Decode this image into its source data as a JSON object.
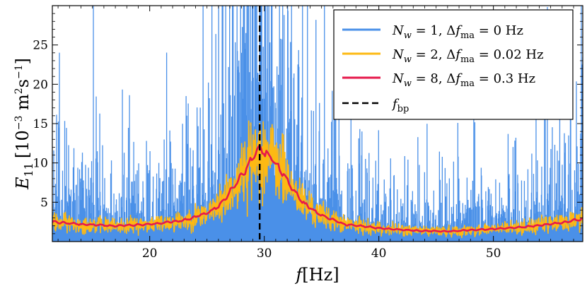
{
  "chart_data": {
    "type": "line",
    "title": "",
    "xlabel": "f [Hz]",
    "ylabel": "E11 [10^-3 m^2 s^-1]",
    "xlim": [
      11.5,
      57.8
    ],
    "ylim": [
      0,
      30
    ],
    "xticks": [
      20,
      30,
      40,
      50
    ],
    "xtick_labels": [
      "20",
      "30",
      "40",
      "50"
    ],
    "yticks": [
      5,
      10,
      15,
      20,
      25
    ],
    "ytick_labels": [
      "5",
      "10",
      "15",
      "20",
      "25"
    ],
    "legend_position": "top-right",
    "series": [
      {
        "name": "N_w = 1, Δf_ma = 0 Hz",
        "color": "#4a90e8",
        "style": "noisy-spectrum",
        "x": [
          11.5,
          14,
          17,
          20,
          23,
          25,
          26,
          27,
          28,
          29,
          29.6,
          30.5,
          31.5,
          32.5,
          33.5,
          35,
          37,
          40,
          43,
          46,
          50,
          53,
          56,
          57.8
        ],
        "values": [
          4.2,
          3.9,
          3.6,
          3.8,
          4.3,
          5.5,
          7.0,
          10.0,
          14.0,
          17.0,
          18.5,
          16.5,
          13.5,
          10.0,
          7.5,
          5.2,
          3.8,
          3.0,
          2.7,
          2.6,
          2.9,
          3.3,
          4.2,
          4.8
        ]
      },
      {
        "name": "N_w = 2, Δf_ma = 0.02 Hz",
        "color": "#fdb913",
        "style": "noisy-spectrum",
        "x": [
          11.5,
          14,
          17,
          20,
          23,
          25,
          26,
          27,
          28,
          29,
          29.6,
          30.5,
          31.5,
          32.5,
          33.5,
          35,
          37,
          40,
          43,
          46,
          50,
          53,
          56,
          57.8
        ],
        "values": [
          2.5,
          2.2,
          2.0,
          2.2,
          2.7,
          3.6,
          4.5,
          6.3,
          8.4,
          10.6,
          11.8,
          10.8,
          9.0,
          6.6,
          4.8,
          3.3,
          2.2,
          1.7,
          1.4,
          1.3,
          1.6,
          1.9,
          2.4,
          2.9
        ]
      },
      {
        "name": "N_w = 8, Δf_ma = 0.3 Hz",
        "color": "#e6194b",
        "style": "smooth",
        "x": [
          11.5,
          14,
          17,
          20,
          23,
          25,
          26,
          27,
          28,
          29,
          29.6,
          30.5,
          31.5,
          32.5,
          33.5,
          35,
          37,
          40,
          43,
          46,
          50,
          53,
          56,
          57.8
        ],
        "values": [
          2.5,
          2.2,
          2.0,
          2.2,
          2.7,
          3.6,
          4.5,
          6.3,
          8.4,
          10.6,
          11.8,
          10.8,
          9.0,
          6.6,
          4.8,
          3.3,
          2.2,
          1.7,
          1.4,
          1.3,
          1.6,
          1.9,
          2.4,
          2.9
        ]
      }
    ],
    "vline": {
      "name": "f_bp",
      "x": 29.6,
      "color": "#000000",
      "style": "dashed"
    }
  },
  "legend": {
    "items": [
      {
        "base": "N",
        "sub": "w",
        "eq": " = 1, Δ",
        "f": "f",
        "fsub": "ma",
        "val": " = 0 Hz"
      },
      {
        "base": "N",
        "sub": "w",
        "eq": " = 2, Δ",
        "f": "f",
        "fsub": "ma",
        "val": " = 0.02 Hz"
      },
      {
        "base": "N",
        "sub": "w",
        "eq": " = 8, Δ",
        "f": "f",
        "fsub": "ma",
        "val": " = 0.3 Hz"
      },
      {
        "base": "f",
        "sub": "bp"
      }
    ]
  },
  "labels": {
    "x_var": "f",
    "x_unit": "[Hz]",
    "y_var": "E",
    "y_sub": "11",
    "y_unit_open": "[10",
    "y_unit_exp": "−3",
    "y_unit_mid": " m",
    "y_unit_m_exp": "2",
    "y_unit_s": "s",
    "y_unit_s_exp": "−1",
    "y_unit_close": "]"
  }
}
